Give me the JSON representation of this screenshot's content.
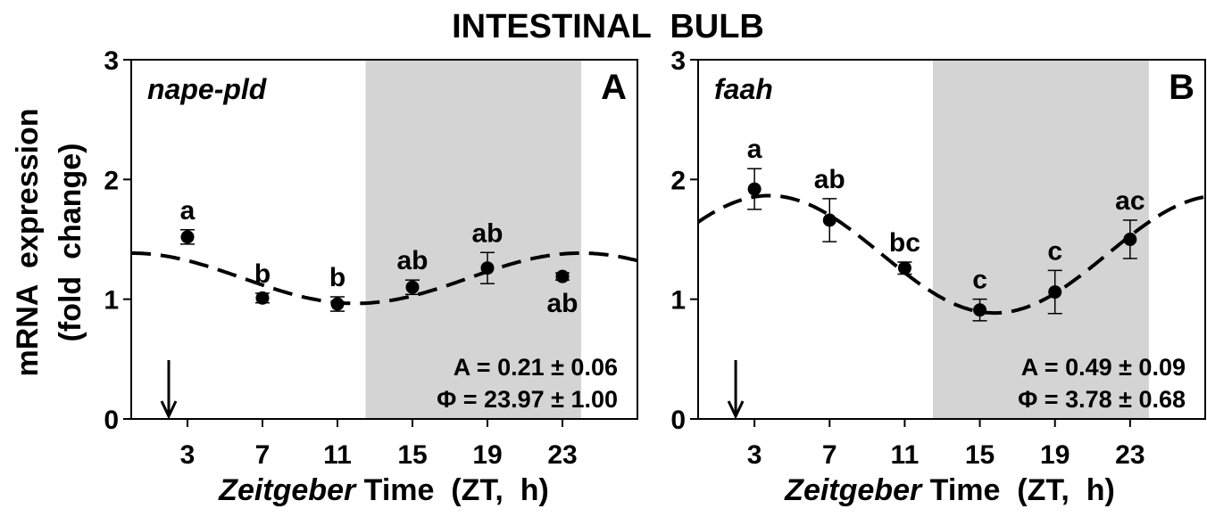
{
  "figure": {
    "title": "INTESTINAL  BULB",
    "ylabel_line1": "mRNA  expression",
    "ylabel_line2": "(fold  change)",
    "xlabel_italic": "Zeitgeber",
    "xlabel_rest": "Time  (ZT,  h)"
  },
  "chart_data": [
    {
      "type": "scatter",
      "panel_letter": "A",
      "gene": "nape-pld",
      "x": [
        3,
        7,
        11,
        15,
        19,
        23
      ],
      "y": [
        1.52,
        1.01,
        0.96,
        1.1,
        1.26,
        1.19
      ],
      "error": [
        0.06,
        0.04,
        0.06,
        0.06,
        0.13,
        0.03
      ],
      "letters": [
        "a",
        "b",
        "b",
        "ab",
        "ab",
        "ab"
      ],
      "letter_below": [
        false,
        false,
        false,
        false,
        false,
        true
      ],
      "fit": {
        "type": "cosinor",
        "mesor": 1.175,
        "amplitude": 0.21,
        "acrophase": 23.97,
        "period": 24
      },
      "stat_amplitude": "A = 0.21 ± 0.06",
      "stat_phase": "Φ = 23.97 ± 1.00",
      "dark_phase": [
        12.5,
        24
      ],
      "xlim": [
        0,
        27
      ],
      "ylim": [
        0,
        3
      ],
      "xticks": [
        "3",
        "7",
        "11",
        "15",
        "19",
        "23"
      ],
      "yticks": [
        "0",
        "1",
        "2",
        "3"
      ],
      "arrow_x": 2
    },
    {
      "type": "scatter",
      "panel_letter": "B",
      "gene": "faah",
      "x": [
        3,
        7,
        11,
        15,
        19,
        23
      ],
      "y": [
        1.92,
        1.66,
        1.26,
        0.91,
        1.06,
        1.5
      ],
      "error": [
        0.17,
        0.18,
        0.05,
        0.09,
        0.18,
        0.16
      ],
      "letters": [
        "a",
        "ab",
        "bc",
        "c",
        "c",
        "ac"
      ],
      "letter_below": [
        false,
        false,
        false,
        false,
        false,
        false
      ],
      "fit": {
        "type": "cosinor",
        "mesor": 1.375,
        "amplitude": 0.49,
        "acrophase": 3.78,
        "period": 24
      },
      "stat_amplitude": "A = 0.49 ± 0.09",
      "stat_phase": "Φ = 3.78 ± 0.68",
      "dark_phase": [
        12.5,
        24
      ],
      "xlim": [
        0,
        27
      ],
      "ylim": [
        0,
        3
      ],
      "xticks": [
        "3",
        "7",
        "11",
        "15",
        "19",
        "23"
      ],
      "yticks": [
        "0",
        "1",
        "2",
        "3"
      ],
      "arrow_x": 2
    }
  ]
}
